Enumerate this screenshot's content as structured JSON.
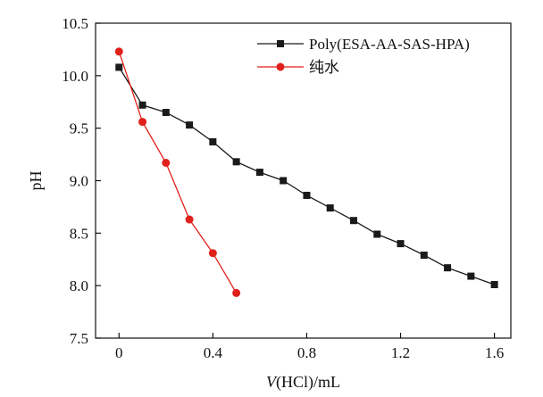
{
  "chart_data": {
    "type": "line",
    "xlabel_italic": "V",
    "xlabel_rest": "(HCl)/mL",
    "ylabel": "pH",
    "xlim": [
      -0.1,
      1.67
    ],
    "ylim": [
      7.5,
      10.5
    ],
    "xticks": [
      "0",
      "0.4",
      "0.8",
      "1.2",
      "1.6"
    ],
    "xtick_values": [
      0,
      0.4,
      0.8,
      1.2,
      1.6
    ],
    "yticks": [
      "7.5",
      "8.0",
      "8.5",
      "9.0",
      "9.5",
      "10.0",
      "10.5"
    ],
    "ytick_values": [
      7.5,
      8.0,
      8.5,
      9.0,
      9.5,
      10.0,
      10.5
    ],
    "grid": false,
    "legend_position": "top-right",
    "series": [
      {
        "name": "Poly(ESA-AA-SAS-HPA)",
        "marker": "square",
        "color": "#1a1a1a",
        "x": [
          0,
          0.1,
          0.2,
          0.3,
          0.4,
          0.5,
          0.6,
          0.7,
          0.8,
          0.9,
          1.0,
          1.1,
          1.2,
          1.3,
          1.4,
          1.5,
          1.6
        ],
        "y": [
          10.08,
          9.72,
          9.65,
          9.53,
          9.37,
          9.18,
          9.08,
          9.0,
          8.86,
          8.74,
          8.62,
          8.49,
          8.4,
          8.29,
          8.17,
          8.09,
          8.01
        ]
      },
      {
        "name": "纯水",
        "marker": "circle",
        "color": "#e0201b",
        "x": [
          0,
          0.1,
          0.2,
          0.3,
          0.4,
          0.5
        ],
        "y": [
          10.23,
          9.56,
          9.17,
          8.63,
          8.31,
          7.93
        ]
      }
    ]
  }
}
